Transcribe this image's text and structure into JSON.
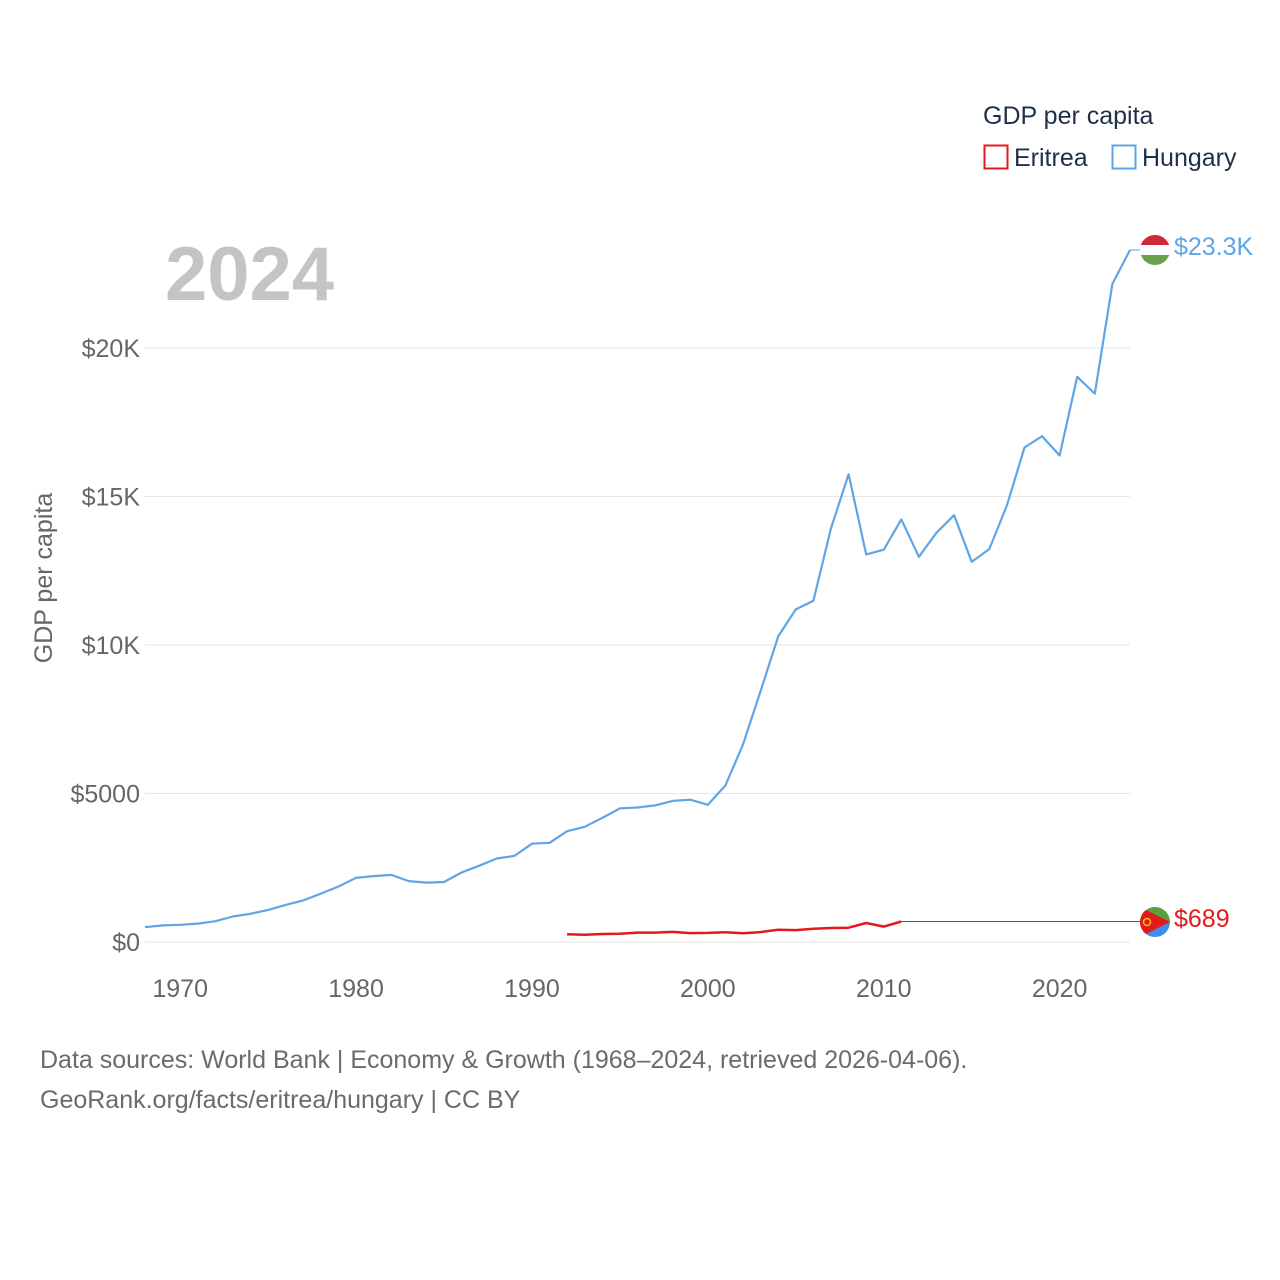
{
  "chart_data": {
    "type": "line",
    "year_label": "2024",
    "ylabel": "GDP per capita",
    "legend": {
      "title": "GDP per capita",
      "items": [
        {
          "label": "Eritrea",
          "color": "#e31a1c"
        },
        {
          "label": "Hungary",
          "color": "#5ea6e6"
        }
      ]
    },
    "xlim": [
      1968,
      2024
    ],
    "ylim": [
      0,
      23300
    ],
    "x_ticks": [
      1970,
      1980,
      1990,
      2000,
      2010,
      2020
    ],
    "y_ticks": [
      {
        "value": 0,
        "label": "$0"
      },
      {
        "value": 5000,
        "label": "$5000"
      },
      {
        "value": 10000,
        "label": "$10K"
      },
      {
        "value": 15000,
        "label": "$15K"
      },
      {
        "value": 20000,
        "label": "$20K"
      }
    ],
    "series": [
      {
        "name": "Hungary",
        "color": "#5ea6e6",
        "end_label": "$23.3K",
        "end_value": 23300,
        "x": [
          1968,
          1969,
          1970,
          1971,
          1972,
          1973,
          1974,
          1975,
          1976,
          1977,
          1978,
          1979,
          1980,
          1981,
          1982,
          1983,
          1984,
          1985,
          1986,
          1987,
          1988,
          1989,
          1990,
          1991,
          1992,
          1993,
          1994,
          1995,
          1996,
          1997,
          1998,
          1999,
          2000,
          2001,
          2002,
          2003,
          2004,
          2005,
          2006,
          2007,
          2008,
          2009,
          2010,
          2011,
          2012,
          2013,
          2014,
          2015,
          2016,
          2017,
          2018,
          2019,
          2020,
          2021,
          2022,
          2023,
          2024
        ],
        "values": [
          500,
          560,
          580,
          620,
          700,
          860,
          950,
          1080,
          1250,
          1400,
          1630,
          1870,
          2160,
          2220,
          2260,
          2050,
          2000,
          2020,
          2340,
          2570,
          2810,
          2900,
          3310,
          3340,
          3730,
          3880,
          4180,
          4500,
          4530,
          4600,
          4750,
          4790,
          4620,
          5270,
          6650,
          8450,
          10290,
          11200,
          11490,
          13930,
          15750,
          13050,
          13210,
          14230,
          12970,
          13780,
          14370,
          12800,
          13230,
          14700,
          16650,
          17030,
          16380,
          19030,
          18460,
          22160,
          23300
        ]
      },
      {
        "name": "Eritrea",
        "color": "#e31a1c",
        "end_label": "$689",
        "end_value": 689,
        "x": [
          1992,
          1993,
          1994,
          1995,
          1996,
          1997,
          1998,
          1999,
          2000,
          2001,
          2002,
          2003,
          2004,
          2005,
          2006,
          2007,
          2008,
          2009,
          2010,
          2011
        ],
        "values": [
          260,
          245,
          270,
          275,
          315,
          315,
          340,
          300,
          305,
          325,
          295,
          335,
          415,
          400,
          445,
          470,
          480,
          640,
          520,
          689
        ]
      }
    ]
  },
  "footer": {
    "line1": "Data sources: World Bank | Economy & Growth (1968–2024, retrieved 2026-04-06).",
    "line2": "GeoRank.org/facts/eritrea/hungary | CC BY"
  }
}
